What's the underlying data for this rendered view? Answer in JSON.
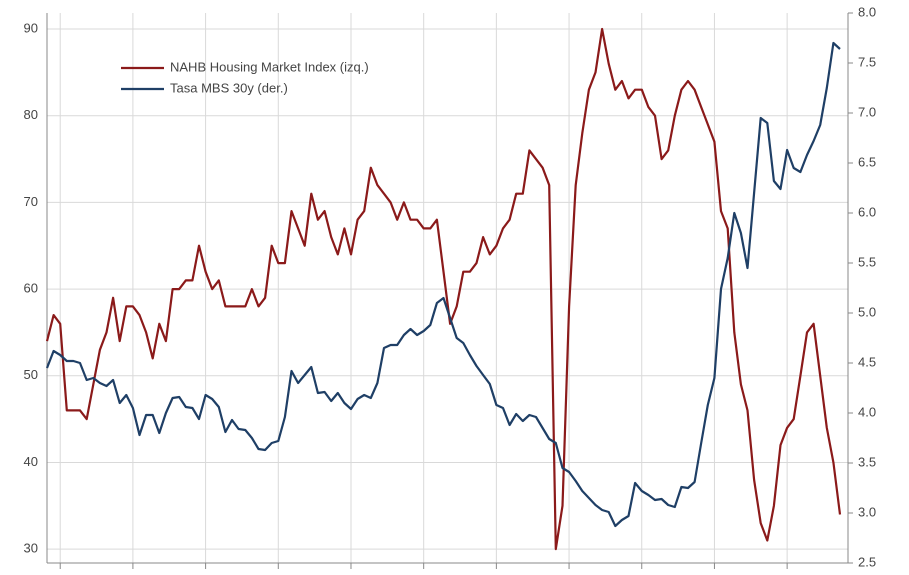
{
  "chart_data": {
    "type": "line",
    "categories": [
      null,
      null,
      null,
      null,
      null,
      null,
      null,
      null,
      null,
      null,
      null,
      null,
      null,
      null,
      null,
      null,
      null,
      null,
      null,
      null,
      null,
      null,
      null,
      null,
      null,
      null,
      null,
      null,
      null,
      null,
      null,
      null,
      null,
      null,
      null,
      null,
      null,
      null,
      null,
      null,
      null,
      null,
      null,
      null,
      null,
      null,
      null,
      null,
      null,
      null,
      null,
      null,
      null,
      null,
      null,
      null,
      null,
      null,
      null,
      null,
      null,
      null,
      null,
      null,
      null,
      null,
      null,
      null,
      null,
      null,
      null,
      null,
      null,
      null,
      null,
      null,
      null,
      null,
      null,
      null,
      null,
      null,
      null,
      null,
      null,
      null,
      null,
      null,
      null,
      null,
      null,
      null,
      null,
      null,
      null,
      null,
      null,
      null,
      null,
      null,
      null,
      null,
      null,
      null,
      null,
      null,
      null,
      null,
      null,
      null,
      null,
      null,
      null,
      null,
      null,
      null,
      null,
      null,
      null,
      null,
      null
    ],
    "series": [
      {
        "name": "NAHB Housing Market Index (izq.)",
        "color": "#8b1a1a",
        "axis": "y",
        "values": [
          54,
          57,
          56,
          46,
          46,
          46,
          45,
          49,
          53,
          55,
          59,
          54,
          58,
          58,
          57,
          55,
          52,
          56,
          54,
          60,
          60,
          61,
          61,
          65,
          62,
          60,
          61,
          58,
          58,
          58,
          58,
          60,
          58,
          59,
          65,
          63,
          63,
          69,
          67,
          65,
          71,
          68,
          69,
          66,
          64,
          67,
          64,
          68,
          69,
          74,
          72,
          71,
          70,
          68,
          70,
          68,
          68,
          67,
          67,
          68,
          62,
          56,
          58,
          62,
          62,
          63,
          66,
          64,
          65,
          67,
          68,
          71,
          71,
          76,
          75,
          74,
          72,
          30,
          35,
          58,
          72,
          78,
          83,
          85,
          90,
          86,
          83,
          84,
          82,
          83,
          83,
          81,
          80,
          75,
          76,
          80,
          83,
          84,
          83,
          81,
          79,
          77,
          69,
          67,
          55,
          49,
          46,
          38,
          33,
          31,
          35,
          42,
          44,
          45,
          50,
          55,
          56,
          50,
          44,
          40,
          34
        ]
      },
      {
        "name": "Tasa MBS 30y (der.)",
        "color": "#1f3f66",
        "axis": "y2",
        "values": [
          4.45,
          4.62,
          4.58,
          4.52,
          4.52,
          4.5,
          4.33,
          4.35,
          4.3,
          4.27,
          4.33,
          4.1,
          4.18,
          4.05,
          3.78,
          3.98,
          3.98,
          3.8,
          4.0,
          4.15,
          4.16,
          4.06,
          4.05,
          3.94,
          4.18,
          4.14,
          4.06,
          3.81,
          3.93,
          3.84,
          3.83,
          3.75,
          3.64,
          3.63,
          3.7,
          3.72,
          3.96,
          4.42,
          4.3,
          4.38,
          4.46,
          4.2,
          4.21,
          4.12,
          4.2,
          4.1,
          4.04,
          4.14,
          4.18,
          4.15,
          4.3,
          4.65,
          4.68,
          4.68,
          4.78,
          4.84,
          4.78,
          4.82,
          4.88,
          5.1,
          5.15,
          4.95,
          4.75,
          4.7,
          4.58,
          4.47,
          4.38,
          4.29,
          4.08,
          4.05,
          3.88,
          3.99,
          3.92,
          3.98,
          3.96,
          3.85,
          3.74,
          3.7,
          3.45,
          3.41,
          3.32,
          3.22,
          3.15,
          3.08,
          3.03,
          3.01,
          2.87,
          2.93,
          2.97,
          3.3,
          3.22,
          3.18,
          3.13,
          3.14,
          3.08,
          3.06,
          3.26,
          3.25,
          3.31,
          3.7,
          4.08,
          4.35,
          5.24,
          5.55,
          6.0,
          5.8,
          5.45,
          6.2,
          6.95,
          6.9,
          6.32,
          6.24,
          6.63,
          6.45,
          6.41,
          6.58,
          6.72,
          6.88,
          7.25,
          7.7,
          7.64
        ]
      }
    ],
    "ylim": [
      28.4,
      91.85
    ],
    "yticks": [
      30,
      40,
      50,
      60,
      70,
      80,
      90
    ],
    "y2lim": [
      2.5,
      8.0
    ],
    "y2ticks": [
      2.5,
      {
        "value": 3,
        "label": "3.0"
      },
      3.5,
      {
        "value": 4,
        "label": "4.0"
      },
      4.5,
      {
        "value": 5,
        "label": "5.0"
      },
      5.5,
      {
        "value": 6,
        "label": "6.0"
      },
      6.5,
      {
        "value": 7,
        "label": "7.0"
      },
      7.5,
      {
        "value": 8,
        "label": "8.0"
      }
    ],
    "grid": true,
    "legend": "upper left"
  }
}
